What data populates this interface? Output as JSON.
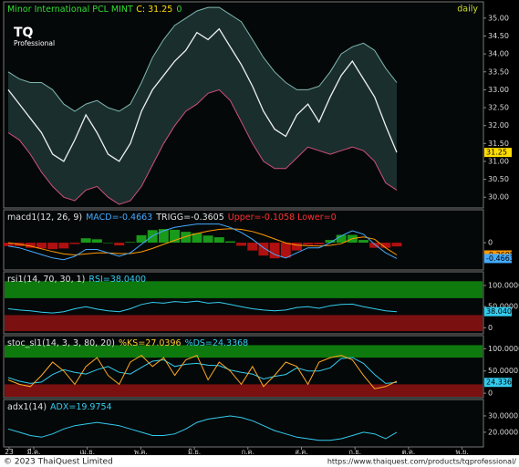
{
  "chart_data": [
    {
      "type": "line",
      "header": [
        {
          "text": "Minor International PCL MINT",
          "color": "#33dd33"
        },
        {
          "text": "C: 31.25",
          "color": "#ffdd00"
        },
        {
          "text": "0",
          "color": "#33dd33"
        }
      ],
      "corner_text": "daily",
      "logo": [
        "TQ",
        "Professional"
      ],
      "ylim": [
        29.7,
        35.2
      ],
      "yticks": [
        {
          "value": 30,
          "label": "30.00"
        },
        {
          "value": 30.5,
          "label": "30.50"
        },
        {
          "value": 31,
          "label": "31.00"
        },
        {
          "value": 31.5,
          "label": "31.50"
        },
        {
          "value": 32,
          "label": "32.00"
        },
        {
          "value": 32.5,
          "label": "32.50"
        },
        {
          "value": 33,
          "label": "33.00"
        },
        {
          "value": 33.5,
          "label": "33.50"
        },
        {
          "value": 34,
          "label": "34.00"
        },
        {
          "value": 34.5,
          "label": "34.50"
        },
        {
          "value": 35,
          "label": "35.00"
        }
      ],
      "series": [
        {
          "name": "Upper",
          "color": "#7fb8b0",
          "values": [
            33.5,
            33.3,
            33.2,
            33.2,
            33.0,
            32.6,
            32.4,
            32.6,
            32.7,
            32.5,
            32.4,
            32.6,
            33.2,
            33.9,
            34.4,
            34.8,
            35.0,
            35.2,
            35.3,
            35.3,
            35.1,
            34.9,
            34.4,
            33.9,
            33.5,
            33.2,
            33.0,
            33.0,
            33.1,
            33.5,
            34.0,
            34.2,
            34.3,
            34.1,
            33.6,
            33.2
          ]
        },
        {
          "name": "Lower",
          "color": "#d05080",
          "values": [
            31.8,
            31.6,
            31.2,
            30.7,
            30.3,
            30.0,
            29.9,
            30.2,
            30.3,
            30.0,
            29.8,
            29.9,
            30.3,
            30.9,
            31.5,
            32.0,
            32.4,
            32.6,
            32.9,
            33.0,
            32.7,
            32.1,
            31.5,
            31.0,
            30.8,
            30.8,
            31.1,
            31.4,
            31.3,
            31.2,
            31.3,
            31.4,
            31.3,
            31.0,
            30.4,
            30.2
          ]
        },
        {
          "name": "Close",
          "color": "#f0f0f0",
          "last_label": "31.25",
          "label_color": "#ffdd00",
          "values": [
            33.0,
            32.6,
            32.2,
            31.8,
            31.2,
            31.0,
            31.6,
            32.3,
            31.8,
            31.2,
            31.0,
            31.5,
            32.4,
            33.0,
            33.4,
            33.8,
            34.1,
            34.6,
            34.4,
            34.7,
            34.2,
            33.7,
            33.1,
            32.4,
            31.9,
            31.7,
            32.3,
            32.6,
            32.1,
            32.8,
            33.4,
            33.8,
            33.3,
            32.8,
            32.0,
            31.25
          ]
        }
      ]
    },
    {
      "type": "line",
      "header": [
        {
          "text": "macd1(12, 26, 9)",
          "color": "#e0e0e0"
        },
        {
          "text": "MACD=-0.4663",
          "color": "#44aaff"
        },
        {
          "text": "TRIGG=-0.3605",
          "color": "#e0e0e0"
        },
        {
          "text": "Upper=-0.1058 Lower=0",
          "color": "#ff3030"
        }
      ],
      "ylim": [
        -0.75,
        0.7
      ],
      "yticks": [
        0
      ],
      "series": [
        {
          "name": "Histogram",
          "style": "bars",
          "color": "#1a9a1a",
          "negative_color": "#b01010",
          "values": [
            -0.1,
            -0.1,
            -0.15,
            -0.17,
            -0.19,
            -0.17,
            -0.04,
            0.13,
            0.1,
            0,
            -0.08,
            0.02,
            0.22,
            0.37,
            0.4,
            0.38,
            0.32,
            0.28,
            0.21,
            0.16,
            0.04,
            -0.09,
            -0.23,
            -0.38,
            -0.46,
            -0.44,
            -0.23,
            -0.06,
            -0.05,
            0.08,
            0.23,
            0.23,
            0.08,
            -0.15,
            -0.15,
            -0.11
          ]
        },
        {
          "name": "TRIGG",
          "color": "#ff9900",
          "last_label": "-0.3605",
          "label_color": "#ff9900",
          "values": [
            0.0,
            -0.05,
            -0.1,
            -0.18,
            -0.26,
            -0.33,
            -0.36,
            -0.33,
            -0.3,
            -0.3,
            -0.32,
            -0.32,
            -0.27,
            -0.17,
            -0.05,
            0.07,
            0.18,
            0.27,
            0.34,
            0.39,
            0.41,
            0.39,
            0.33,
            0.23,
            0.11,
            -0.01,
            -0.07,
            -0.09,
            -0.1,
            -0.08,
            -0.03,
            0.12,
            0.17,
            0.1,
            -0.15,
            -0.3605
          ]
        },
        {
          "name": "MACD",
          "color": "#44aaff",
          "last_label": "-0.4663",
          "label_color": "#44aaff",
          "values": [
            -0.1,
            -0.15,
            -0.25,
            -0.35,
            -0.45,
            -0.5,
            -0.4,
            -0.2,
            -0.2,
            -0.3,
            -0.4,
            -0.3,
            -0.05,
            0.2,
            0.35,
            0.45,
            0.5,
            0.55,
            0.55,
            0.55,
            0.45,
            0.3,
            0.1,
            -0.15,
            -0.35,
            -0.45,
            -0.3,
            -0.15,
            -0.15,
            0.0,
            0.2,
            0.35,
            0.25,
            -0.05,
            -0.3,
            -0.4663
          ]
        }
      ]
    },
    {
      "type": "line",
      "header": [
        {
          "text": "rsi1(14, 70, 30, 1)",
          "color": "#e0e0e0"
        },
        {
          "text": "RSI=38.0400",
          "color": "#33ccee"
        }
      ],
      "ylim": [
        -10,
        115
      ],
      "yticks": [
        0,
        {
          "value": 50,
          "label": "50.0000"
        },
        {
          "value": 100,
          "label": "100.0000"
        }
      ],
      "bands": [
        {
          "from": 70,
          "to": 110,
          "color": "#0e7a0e"
        },
        {
          "from": -8,
          "to": 30,
          "color": "#7a1010"
        }
      ],
      "series": [
        {
          "name": "RSI",
          "color": "#33ccee",
          "last_label": "38.0400",
          "label_color": "#33ccee",
          "values": [
            45,
            42,
            40,
            37,
            35,
            38,
            45,
            50,
            44,
            40,
            38,
            45,
            55,
            60,
            58,
            62,
            60,
            63,
            58,
            60,
            55,
            50,
            45,
            42,
            40,
            42,
            48,
            50,
            46,
            52,
            55,
            56,
            50,
            45,
            40,
            38.04
          ]
        }
      ]
    },
    {
      "type": "line",
      "header": [
        {
          "text": "stoc_sl1(14, 3, 3, 80, 20)",
          "color": "#e0e0e0"
        },
        {
          "text": "%KS=27.0396",
          "color": "#ffcc33"
        },
        {
          "text": "%DS=24.3368",
          "color": "#33ccee"
        }
      ],
      "ylim": [
        -10,
        115
      ],
      "yticks": [
        0,
        {
          "value": 50,
          "label": "50.0000"
        },
        {
          "value": 100,
          "label": "100.0000"
        }
      ],
      "bands": [
        {
          "from": 80,
          "to": 108,
          "color": "#0e7a0e"
        },
        {
          "from": -8,
          "to": 20,
          "color": "#7a1010"
        }
      ],
      "series": [
        {
          "name": "%DS",
          "color": "#33ccee",
          "last_label": "24.3368",
          "label_color": "#33ccee",
          "values": [
            35,
            27,
            22,
            25,
            42,
            53,
            47,
            43,
            53,
            60,
            47,
            43,
            58,
            72,
            75,
            60,
            65,
            67,
            63,
            62,
            52,
            47,
            43,
            32,
            38,
            42,
            57,
            50,
            50,
            57,
            78,
            80,
            67,
            42,
            22,
            24.34
          ]
        },
        {
          "name": "%KS",
          "color": "#ffaa22",
          "values": [
            30,
            20,
            15,
            40,
            70,
            50,
            20,
            60,
            80,
            40,
            20,
            70,
            85,
            60,
            80,
            40,
            75,
            85,
            30,
            70,
            50,
            20,
            60,
            15,
            40,
            70,
            60,
            20,
            70,
            80,
            85,
            75,
            40,
            10,
            15,
            27.04
          ]
        }
      ]
    },
    {
      "type": "line",
      "header": [
        {
          "text": "adx1(14)",
          "color": "#e0e0e0"
        },
        {
          "text": "ADX=19.9754",
          "color": "#33ccee"
        }
      ],
      "ylim": [
        11,
        35
      ],
      "yticks": [
        {
          "value": 20,
          "label": "20.0000"
        },
        {
          "value": 30,
          "label": "30.0000"
        }
      ],
      "series": [
        {
          "name": "ADX",
          "color": "#33ccee",
          "values": [
            22,
            20,
            18,
            17,
            19,
            22,
            24,
            25,
            26,
            25,
            24,
            22,
            20,
            18,
            18,
            19,
            22,
            26,
            28,
            29,
            30,
            29,
            27,
            24,
            21,
            19,
            17,
            16,
            15,
            15,
            16,
            18,
            20,
            19,
            16,
            19.98
          ]
        }
      ]
    }
  ],
  "x_labels": [
    "23",
    "มี.ค.",
    "เม.ย.",
    "พ.ค.",
    "มิ.ย.",
    "ก.ค.",
    "ส.ค.",
    "ก.ย.",
    "ต.ค.",
    "พ.ย."
  ],
  "footer": {
    "left": "© 2023 ThaiQuest Limited",
    "right": "https://www.thaiquest.com/products/tqprofessional/"
  }
}
